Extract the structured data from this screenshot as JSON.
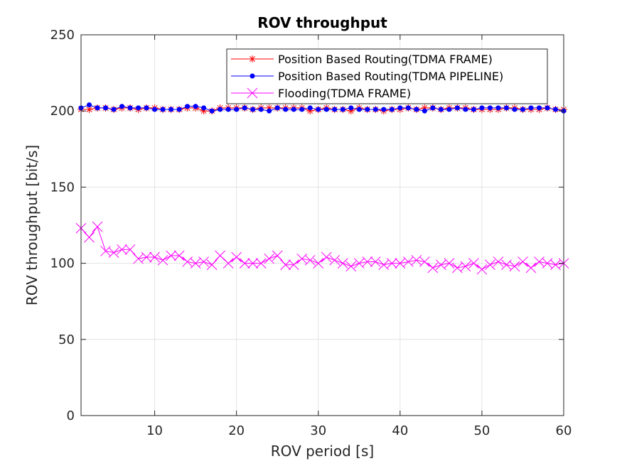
{
  "chart_data": {
    "type": "line",
    "title": "ROV throughput",
    "xlabel": "ROV period [s]",
    "ylabel": "ROV throughput [bit/s]",
    "xlim": [
      1,
      60
    ],
    "ylim": [
      0,
      250
    ],
    "xticks": [
      10,
      20,
      30,
      40,
      50,
      60
    ],
    "yticks": [
      0,
      50,
      100,
      150,
      200,
      250
    ],
    "grid": true,
    "legend_position": "top-right",
    "x": [
      1,
      2,
      3,
      4,
      5,
      6,
      7,
      8,
      9,
      10,
      11,
      12,
      13,
      14,
      15,
      16,
      17,
      18,
      19,
      20,
      21,
      22,
      23,
      24,
      25,
      26,
      27,
      28,
      29,
      30,
      31,
      32,
      33,
      34,
      35,
      36,
      37,
      38,
      39,
      40,
      41,
      42,
      43,
      44,
      45,
      46,
      47,
      48,
      49,
      50,
      51,
      52,
      53,
      54,
      55,
      56,
      57,
      58,
      59,
      60
    ],
    "series": [
      {
        "name": "Position Based Routing(TDMA FRAME)",
        "color": "#ff0000",
        "marker": "asterisk",
        "values": [
          201,
          201,
          202,
          202,
          201,
          202,
          202,
          201,
          202,
          202,
          201,
          201,
          201,
          202,
          202,
          200,
          200,
          202,
          202,
          202,
          202,
          201,
          202,
          202,
          202,
          202,
          202,
          202,
          200,
          201,
          202,
          201,
          201,
          200,
          202,
          201,
          201,
          200,
          201,
          201,
          202,
          201,
          202,
          202,
          201,
          202,
          202,
          202,
          201,
          201,
          201,
          201,
          202,
          202,
          201,
          201,
          201,
          202,
          201,
          201
        ]
      },
      {
        "name": "Position Based Routing(TDMA PIPELINE)",
        "color": "#0000ff",
        "marker": "dot",
        "values": [
          202,
          204,
          202,
          202,
          201,
          203,
          202,
          202,
          202,
          201,
          201,
          201,
          201,
          203,
          203,
          202,
          200,
          201,
          201,
          201,
          202,
          201,
          201,
          200,
          202,
          201,
          201,
          201,
          202,
          201,
          201,
          201,
          201,
          202,
          201,
          201,
          201,
          201,
          201,
          202,
          202,
          201,
          200,
          202,
          201,
          201,
          202,
          201,
          201,
          202,
          202,
          202,
          202,
          201,
          201,
          202,
          202,
          202,
          201,
          200
        ]
      },
      {
        "name": "Flooding(TDMA FRAME)",
        "color": "#ff00ff",
        "marker": "x",
        "values": [
          123,
          117,
          124,
          108,
          107,
          109,
          109,
          103,
          104,
          104,
          102,
          105,
          105,
          101,
          100,
          101,
          99,
          105,
          100,
          104,
          100,
          100,
          100,
          103,
          105,
          99,
          99,
          103,
          102,
          100,
          104,
          102,
          100,
          98,
          100,
          101,
          101,
          99,
          100,
          100,
          101,
          102,
          101,
          97,
          99,
          100,
          97,
          98,
          100,
          96,
          99,
          101,
          99,
          98,
          101,
          97,
          101,
          100,
          99,
          100
        ]
      }
    ]
  }
}
